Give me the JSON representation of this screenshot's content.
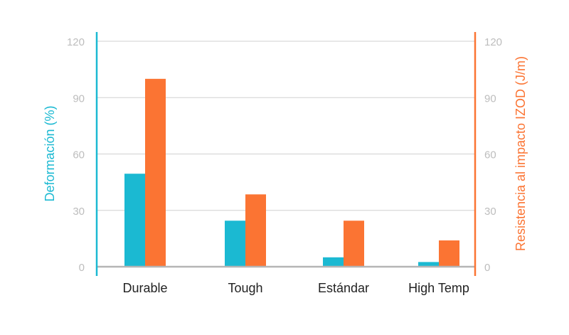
{
  "chart_data": {
    "type": "bar",
    "categories": [
      "Durable",
      "Tough",
      "Estándar",
      "High Temp"
    ],
    "series": [
      {
        "name": "Deformación (%)",
        "axis": "left",
        "color": "#1bb9d2",
        "values": [
          49.5,
          24.5,
          5,
          2.5
        ]
      },
      {
        "name": "Resistencia al impacto IZOD (J/m)",
        "axis": "right",
        "color": "#fb7433",
        "values": [
          100,
          38.5,
          24.5,
          14
        ]
      }
    ],
    "ylabel_left": "Deformación (%)",
    "ylabel_right": "Resistencia al impacto IZOD (J/m)",
    "ylim_left": [
      0,
      120
    ],
    "ylim_right": [
      0,
      120
    ],
    "yticks_left": [
      0,
      30,
      60,
      90,
      120
    ],
    "yticks_right": [
      0,
      30,
      60,
      90,
      120
    ],
    "grid": true,
    "legend": "none"
  }
}
